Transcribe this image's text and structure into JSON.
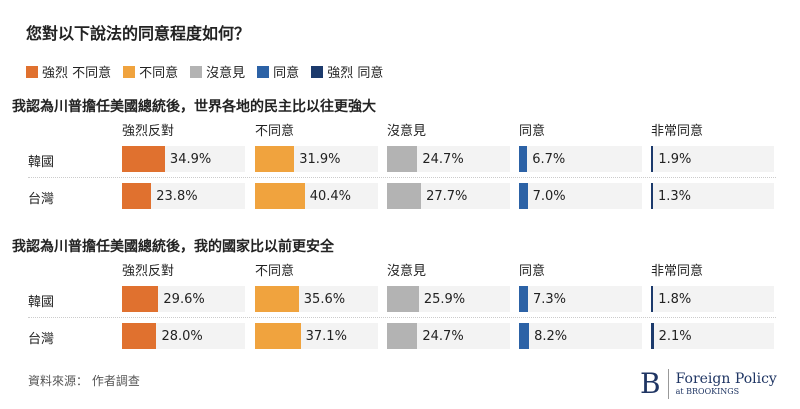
{
  "title": "您對以下說法的同意程度如何？",
  "legend": [
    {
      "label": "強烈 不同意",
      "color": "#e0712f"
    },
    {
      "label": "不同意",
      "color": "#f0a33e"
    },
    {
      "label": "沒意見",
      "color": "#b3b3b3"
    },
    {
      "label": "同意",
      "color": "#2c62a6"
    },
    {
      "label": "強烈 同意",
      "color": "#1c3a6c"
    }
  ],
  "chart_data": {
    "type": "bar",
    "xlim": [
      0,
      100
    ],
    "columns": [
      "強烈反對",
      "不同意",
      "沒意見",
      "同意",
      "非常同意"
    ],
    "colors": [
      "#e0712f",
      "#f0a33e",
      "#b3b3b3",
      "#2c62a6",
      "#1c3a6c"
    ],
    "sections": [
      {
        "title": "我認為川普擔任美國總統後，世界各地的民主比以往更強大",
        "rows": [
          {
            "label": "韓國",
            "values": [
              34.9,
              31.9,
              24.7,
              6.7,
              1.9
            ]
          },
          {
            "label": "台灣",
            "values": [
              23.8,
              40.4,
              27.7,
              7.0,
              1.3
            ]
          }
        ]
      },
      {
        "title": "我認為川普擔任美國總統後，我的國家比以前更安全",
        "rows": [
          {
            "label": "韓國",
            "values": [
              29.6,
              35.6,
              25.9,
              7.3,
              1.8
            ]
          },
          {
            "label": "台灣",
            "values": [
              28.0,
              37.1,
              24.7,
              8.2,
              2.1
            ]
          }
        ]
      }
    ]
  },
  "source": "資料來源： 作者調查",
  "logo": {
    "letter": "B",
    "name": "Foreign Policy",
    "sub": "at BROOKINGS"
  }
}
